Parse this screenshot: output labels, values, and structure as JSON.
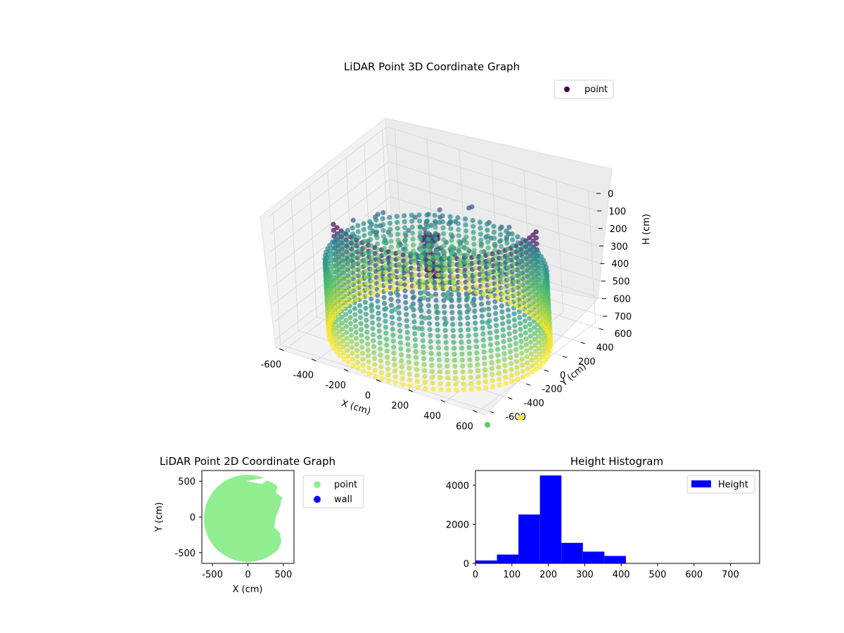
{
  "figure_bg": "#ffffff",
  "chart_data": [
    {
      "type": "scatter",
      "projection": "3d",
      "title": "LiDAR Point 3D Coordinate Graph",
      "xlabel": "X (cm)",
      "ylabel": "Y (cm)",
      "zlabel": "H (cm)",
      "xlim": [
        -650,
        650
      ],
      "ylim": [
        -650,
        650
      ],
      "zlim": [
        750,
        0
      ],
      "x_ticks": [
        -600,
        -400,
        -200,
        0,
        200,
        400,
        600
      ],
      "y_ticks": [
        -600,
        -400,
        -200,
        0,
        200,
        400,
        600
      ],
      "z_ticks": [
        0,
        100,
        200,
        300,
        400,
        500,
        600,
        700
      ],
      "z_inverted": true,
      "colormap": "viridis",
      "grid": true,
      "legend": {
        "placement": "top-right",
        "entries": [
          {
            "label": "point",
            "color": "#440154"
          }
        ]
      },
      "wall_radius_cm": 600,
      "wall_height_range_cm": [
        0,
        760
      ],
      "outlier_points": [
        {
          "color": "#5ec962"
        },
        {
          "color": "#fde725"
        }
      ]
    },
    {
      "type": "scatter",
      "title": "LiDAR Point 2D Coordinate Graph",
      "xlabel": "X (cm)",
      "ylabel": "Y (cm)",
      "xlim": [
        -650,
        650
      ],
      "ylim": [
        -650,
        650
      ],
      "x_ticks": [
        -500,
        0,
        500
      ],
      "y_ticks": [
        -500,
        0,
        500
      ],
      "grid": false,
      "legend": {
        "placement": "outside-right",
        "entries": [
          {
            "label": "point",
            "color": "#90ee90"
          },
          {
            "label": "wall",
            "color": "#0000ff"
          }
        ]
      },
      "disk_radius_cm": 650
    },
    {
      "type": "bar",
      "subtype": "histogram",
      "title": "Height Histogram",
      "xlabel": "",
      "ylabel": "",
      "bins": [
        0,
        59,
        118,
        177,
        236,
        295,
        354,
        413,
        472,
        531,
        590,
        649,
        708,
        767
      ],
      "counts": [
        150,
        450,
        2500,
        4500,
        1050,
        600,
        380,
        0,
        0,
        0,
        0,
        0,
        0
      ],
      "xlim": [
        0,
        780
      ],
      "ylim": [
        0,
        4750
      ],
      "x_ticks": [
        0,
        100,
        200,
        300,
        400,
        500,
        600,
        700
      ],
      "y_ticks": [
        0,
        2000,
        4000
      ],
      "color": "#0000ff",
      "grid": false,
      "legend": {
        "placement": "top-right",
        "entries": [
          {
            "label": "Height",
            "color": "#0000ff"
          }
        ]
      }
    }
  ]
}
